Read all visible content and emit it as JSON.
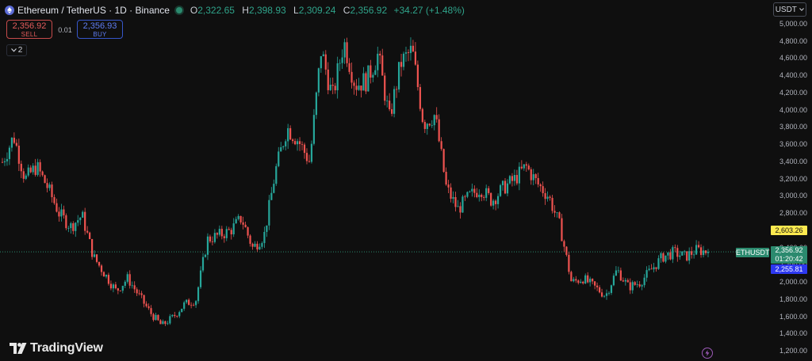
{
  "header": {
    "title": "Ethereum / TetherUS · 1D · Binance",
    "open_label": "O",
    "open": "2,322.65",
    "high_label": "H",
    "high": "2,398.93",
    "low_label": "L",
    "low": "2,309.24",
    "close_label": "C",
    "close": "2,356.92",
    "change": "+34.27 (+1.48%)"
  },
  "trade": {
    "sell_price": "2,356.92",
    "sell_label": "SELL",
    "spread": "0.01",
    "buy_price": "2,356.93",
    "buy_label": "BUY"
  },
  "indicators_toggle": {
    "count": "2"
  },
  "currency_selector": "USDT",
  "price_labels": {
    "high_marker": "2,603.26",
    "symbol": "ETHUSDT",
    "last_price": "2,356.92",
    "countdown": "01:20:42",
    "low_marker": "2,255.81"
  },
  "brand": "TradingView",
  "colors": {
    "up": "#26a69a",
    "down": "#ef5350",
    "high_marker_bg": "#fce94f",
    "low_marker_bg": "#2d38f0",
    "last_price_bg": "#2b8a6e"
  },
  "chart_data": {
    "type": "candlestick",
    "y_ticks": [
      1200,
      1400,
      1600,
      1800,
      2000,
      2200,
      2400,
      2600,
      2800,
      3000,
      3200,
      3400,
      3600,
      3800,
      4000,
      4200,
      4400,
      4600,
      4800,
      5000
    ],
    "y_tick_labels": [
      "1,200.00",
      "1,400.00",
      "1,600.00",
      "1,800.00",
      "2,000.00",
      "2,200.00",
      "2,400.00",
      "2,600.00",
      "2,800.00",
      "3,000.00",
      "3,200.00",
      "3,400.00",
      "3,600.00",
      "3,800.00",
      "4,000.00",
      "4,200.00",
      "4,400.00",
      "4,600.00",
      "4,800.00",
      "5,000.00"
    ],
    "ylim": [
      1200,
      5000
    ],
    "last_price": 2356.92,
    "price_path": [
      3400,
      3700,
      3200,
      3350,
      3100,
      2800,
      2650,
      2780,
      2300,
      2100,
      1900,
      2050,
      1850,
      1650,
      1500,
      1600,
      1750,
      1800,
      2500,
      2550,
      2600,
      2750,
      2400,
      2550,
      3300,
      3800,
      3650,
      3400,
      4700,
      4150,
      4800,
      4300,
      4350,
      4650,
      3900,
      4550,
      4700,
      3850,
      3950,
      3100,
      2850,
      3000,
      3100,
      2950,
      3100,
      3200,
      3350,
      3150,
      3000,
      2650,
      2000,
      2050,
      1950,
      1850,
      2150,
      1950,
      2000,
      2150,
      2300,
      2350,
      2300,
      2380,
      2357
    ]
  }
}
